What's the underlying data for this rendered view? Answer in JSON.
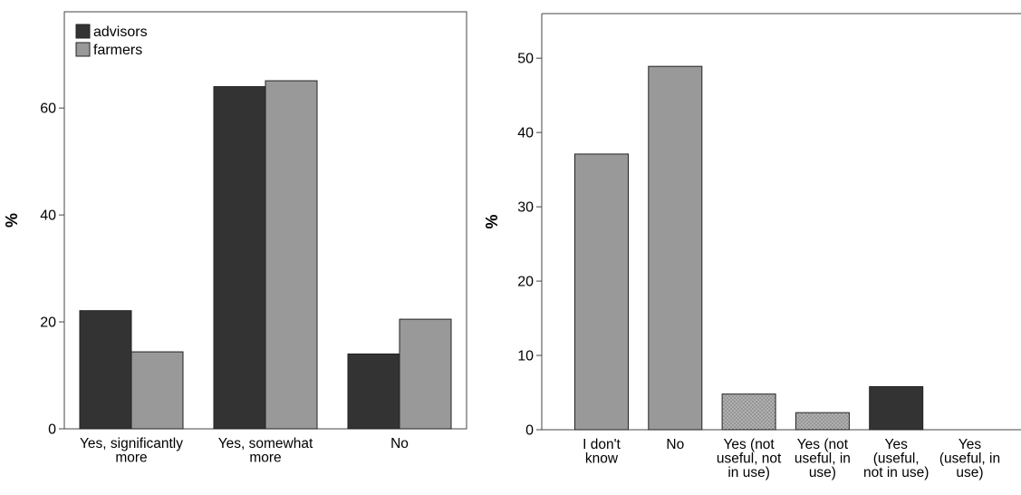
{
  "chart_data": [
    {
      "type": "bar",
      "categories": [
        [
          "Yes, significantly",
          "more"
        ],
        [
          "Yes, somewhat",
          "more"
        ],
        [
          "No"
        ]
      ],
      "series": [
        {
          "name": "advisors",
          "values": [
            22.1,
            64.0,
            14.0
          ],
          "color": "#333333"
        },
        {
          "name": "farmers",
          "values": [
            14.4,
            65.1,
            20.5
          ],
          "color": "#999999"
        }
      ],
      "ylabel": "%",
      "ylim": [
        0,
        78
      ],
      "yticks": [
        0,
        20,
        40,
        60
      ],
      "legend": "top-left",
      "grid": false
    },
    {
      "type": "bar",
      "categories": [
        [
          "I don't",
          "know"
        ],
        [
          "No"
        ],
        [
          "Yes (not",
          "useful, not",
          "in use)"
        ],
        [
          "Yes (not",
          "useful, in",
          "use)"
        ],
        [
          "Yes",
          "(useful,",
          "not in use)"
        ],
        [
          "Yes",
          "(useful, in",
          "use)"
        ]
      ],
      "values": [
        37.1,
        48.9,
        4.8,
        2.3,
        5.8,
        0
      ],
      "bar_fills": [
        "#999999",
        "#999999",
        "dotted",
        "dotted",
        "#333333",
        "#333333"
      ],
      "ylabel": "%",
      "ylim": [
        0,
        56
      ],
      "yticks": [
        0,
        10,
        20,
        30,
        40,
        50
      ],
      "grid": false
    }
  ]
}
